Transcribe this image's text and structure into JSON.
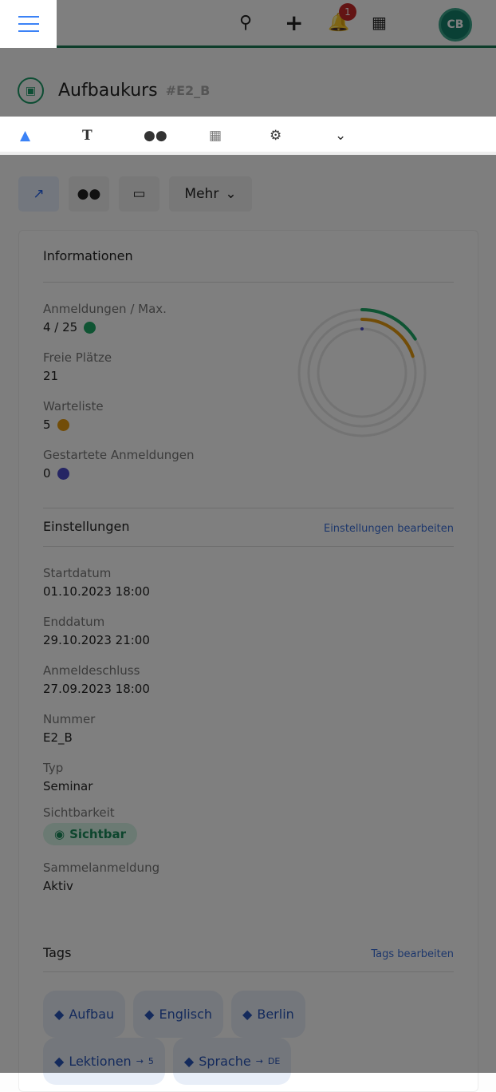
{
  "topbar": {
    "notification_count": "1",
    "avatar_initials": "CB",
    "icons": [
      "menu-icon",
      "search-icon",
      "plus-icon",
      "bell-icon",
      "apps-grid-icon"
    ]
  },
  "header": {
    "title": "Aufbaukurs",
    "code": "#E2_B"
  },
  "tabs": [
    {
      "icon": "chart-area-icon",
      "active": true
    },
    {
      "icon": "text-icon"
    },
    {
      "icon": "users-icon"
    },
    {
      "icon": "calendar-icon"
    },
    {
      "icon": "gears-icon"
    },
    {
      "icon": "chevron-down-icon"
    }
  ],
  "actions": {
    "more_label": "Mehr"
  },
  "info": {
    "heading": "Informationen",
    "registrations_label": "Anmeldungen / Max.",
    "registrations_value": "4 / 25",
    "free_label": "Freie Plätze",
    "free_value": "21",
    "waitlist_label": "Warteliste",
    "waitlist_value": "5",
    "started_label": "Gestartete Anmeldungen",
    "started_value": "0",
    "colors": {
      "registrations": "#1fa866",
      "waitlist": "#e59a11",
      "started": "#4a4ac8"
    },
    "ring": {
      "max": 25,
      "registrations": 4,
      "waitlist": 5,
      "started": 0
    }
  },
  "settings": {
    "heading": "Einstellungen",
    "edit_link": "Einstellungen bearbeiten",
    "fields": [
      {
        "label": "Startdatum",
        "value": "01.10.2023 18:00"
      },
      {
        "label": "Enddatum",
        "value": "29.10.2023 21:00"
      },
      {
        "label": "Anmeldeschluss",
        "value": "27.09.2023 18:00"
      },
      {
        "label": "Nummer",
        "value": "E2_B"
      },
      {
        "label": "Typ",
        "value": "Seminar"
      }
    ],
    "visibility_label": "Sichtbarkeit",
    "visibility_value": "Sichtbar",
    "collective_label": "Sammelanmeldung",
    "collective_value": "Aktiv"
  },
  "tags": {
    "heading": "Tags",
    "edit_link": "Tags bearbeiten",
    "items": [
      {
        "name": "Aufbau"
      },
      {
        "name": "Englisch"
      },
      {
        "name": "Berlin"
      },
      {
        "name": "Lektionen",
        "value": "5"
      },
      {
        "name": "Sprache",
        "value": "DE"
      }
    ]
  }
}
